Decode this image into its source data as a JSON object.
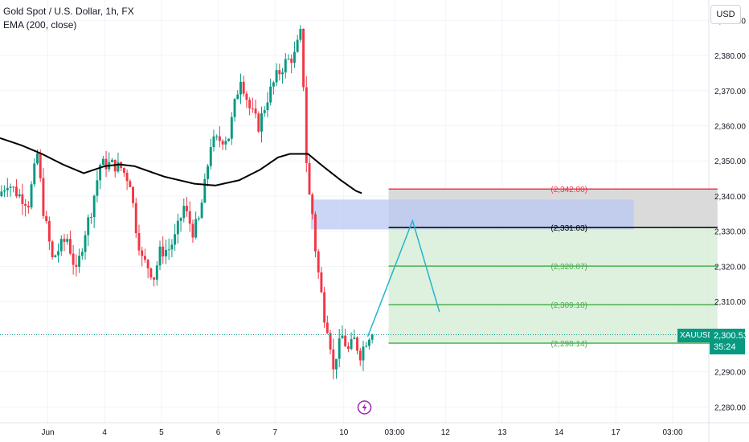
{
  "legend": {
    "title": "Gold Spot / U.S. Dollar, 1h, FX",
    "indicator": "EMA (200, close)"
  },
  "currency_button": "USD",
  "current_price": {
    "symbol": "XAUUSD",
    "price": "2,300.53",
    "countdown": "35:24",
    "value": 2300.53,
    "color": "#089981"
  },
  "colors": {
    "up": "#089981",
    "down": "#f23645",
    "ema": "#000000",
    "target_fill": "#d8edd8",
    "stop_fill": "#d6d6d6",
    "entry_zone": "#b9c8f4",
    "projection": "#22b5cf",
    "level_green": "#4caf50",
    "level_red": "#f23645"
  },
  "event_icon": "lightning-bolt-icon",
  "chart_data": {
    "type": "candlestick",
    "title": "Gold Spot / U.S. Dollar, 1h, FX",
    "y_range": [
      2275.5,
      2393.5
    ],
    "y_ticks": [
      {
        "value": 2390,
        "label": "2,390.00"
      },
      {
        "value": 2380,
        "label": "2,380.00"
      },
      {
        "value": 2370,
        "label": "2,370.00"
      },
      {
        "value": 2360,
        "label": "2,360.00"
      },
      {
        "value": 2350,
        "label": "2,350.00"
      },
      {
        "value": 2340,
        "label": "2,340.00"
      },
      {
        "value": 2330,
        "label": "2,330.00"
      },
      {
        "value": 2320,
        "label": "2,320.00"
      },
      {
        "value": 2310,
        "label": "2,310.00"
      },
      {
        "value": 2300,
        "label": "2,300.00"
      },
      {
        "value": 2290,
        "label": "2,290.00"
      },
      {
        "value": 2280,
        "label": "2,280.00"
      }
    ],
    "x_ticks": [
      {
        "label": "Jun",
        "bar": 16
      },
      {
        "label": "4",
        "bar": 35
      },
      {
        "label": "5",
        "bar": 54
      },
      {
        "label": "6",
        "bar": 73
      },
      {
        "label": "7",
        "bar": 92
      },
      {
        "label": "10",
        "bar": 115
      },
      {
        "label": "03:00",
        "bar": 132
      },
      {
        "label": "12",
        "bar": 149
      },
      {
        "label": "13",
        "bar": 168
      },
      {
        "label": "14",
        "bar": 187
      },
      {
        "label": "17",
        "bar": 206
      },
      {
        "label": "03:00",
        "bar": 225
      }
    ],
    "price_anchors": [
      [
        0,
        2340
      ],
      [
        3,
        2344
      ],
      [
        6,
        2341
      ],
      [
        10,
        2338
      ],
      [
        13,
        2352
      ],
      [
        15,
        2336
      ],
      [
        18,
        2322
      ],
      [
        21,
        2326
      ],
      [
        23,
        2328
      ],
      [
        26,
        2318
      ],
      [
        29,
        2330
      ],
      [
        31,
        2336
      ],
      [
        34,
        2349
      ],
      [
        38,
        2349
      ],
      [
        41,
        2348
      ],
      [
        44,
        2344
      ],
      [
        46,
        2331
      ],
      [
        48,
        2322
      ],
      [
        50,
        2320
      ],
      [
        52,
        2317
      ],
      [
        54,
        2324
      ],
      [
        57,
        2325
      ],
      [
        59,
        2328
      ],
      [
        62,
        2337
      ],
      [
        65,
        2330
      ],
      [
        67,
        2333
      ],
      [
        69,
        2343
      ],
      [
        71,
        2355
      ],
      [
        74,
        2356
      ],
      [
        77,
        2357
      ],
      [
        79,
        2366
      ],
      [
        81,
        2374
      ],
      [
        84,
        2365
      ],
      [
        87,
        2360
      ],
      [
        90,
        2368
      ],
      [
        93,
        2374
      ],
      [
        96,
        2378
      ],
      [
        99,
        2380
      ],
      [
        101,
        2386
      ],
      [
        102,
        2372
      ],
      [
        103,
        2350
      ],
      [
        104,
        2340
      ],
      [
        105,
        2335
      ],
      [
        106,
        2325
      ],
      [
        107,
        2318
      ],
      [
        108,
        2312
      ],
      [
        109,
        2306
      ],
      [
        110,
        2303
      ],
      [
        111,
        2298
      ],
      [
        112,
        2290
      ],
      [
        113,
        2295
      ],
      [
        115,
        2300
      ],
      [
        117,
        2296
      ],
      [
        119,
        2299
      ],
      [
        121,
        2295
      ],
      [
        123,
        2299
      ],
      [
        124,
        2300.53
      ]
    ],
    "ema_anchors": [
      [
        0,
        2356.5
      ],
      [
        7,
        2354.5
      ],
      [
        14,
        2352
      ],
      [
        21,
        2349
      ],
      [
        28,
        2346.5
      ],
      [
        35,
        2348.5
      ],
      [
        40,
        2349
      ],
      [
        45,
        2348.5
      ],
      [
        55,
        2345.5
      ],
      [
        65,
        2343.5
      ],
      [
        72,
        2343
      ],
      [
        80,
        2344.5
      ],
      [
        87,
        2347.5
      ],
      [
        93,
        2351
      ],
      [
        97,
        2352
      ],
      [
        103,
        2352
      ],
      [
        108,
        2348.5
      ],
      [
        114,
        2344.5
      ],
      [
        119,
        2341.5
      ],
      [
        121,
        2340.8
      ]
    ],
    "levels": [
      {
        "value": 2342.0,
        "label": "(2,342.00)",
        "role": "stop"
      },
      {
        "value": 2331.03,
        "label": "(2,331.03)",
        "role": "entry"
      },
      {
        "value": 2320.07,
        "label": "(2,320.07)",
        "role": "target"
      },
      {
        "value": 2309.1,
        "label": "(2,309.10)",
        "role": "target"
      },
      {
        "value": 2298.14,
        "label": "(2,298.14)",
        "role": "target"
      }
    ],
    "entry_zone": {
      "x_from": 104,
      "x_to": 212,
      "y_from": 2330.5,
      "y_to": 2339
    },
    "position_box": {
      "x_from": 130,
      "x_to": 240,
      "top": 2342.0,
      "entry": 2331.03,
      "bottom": 2298.14
    },
    "projection_path": [
      [
        123,
        2300
      ],
      [
        138,
        2333
      ],
      [
        147,
        2307
      ]
    ],
    "event_marker_bar": 123
  }
}
